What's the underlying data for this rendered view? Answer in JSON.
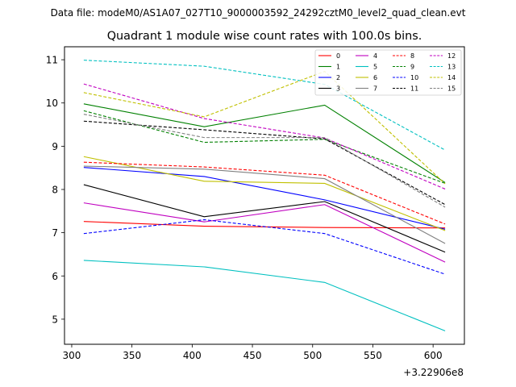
{
  "chart_data": {
    "type": "line",
    "suptitle": "Data file: modeM0/AS1A07_027T10_9000003592_24292cztM0_level2_quad_clean.evt",
    "title": "Quadrant 1 module wise count rates with 100.0s bins.",
    "xlabel": "",
    "ylabel": "",
    "x": [
      310,
      410,
      510,
      610
    ],
    "x_offset_label": "+3.22906e8",
    "xlim": [
      294,
      626
    ],
    "ylim": [
      4.42,
      11.3
    ],
    "xticks": [
      300,
      350,
      400,
      450,
      500,
      550,
      600
    ],
    "yticks": [
      5,
      6,
      7,
      8,
      9,
      10,
      11
    ],
    "legend_position": "top-right",
    "legend_columns": 4,
    "grid": false,
    "series": [
      {
        "name": "0",
        "color": "#ff0000",
        "dash": "solid",
        "values": [
          7.26,
          7.15,
          7.12,
          7.11
        ]
      },
      {
        "name": "1",
        "color": "#008000",
        "dash": "solid",
        "values": [
          9.98,
          9.45,
          9.95,
          8.16
        ]
      },
      {
        "name": "2",
        "color": "#0000ff",
        "dash": "solid",
        "values": [
          8.51,
          8.3,
          7.76,
          7.08
        ]
      },
      {
        "name": "3",
        "color": "#000000",
        "dash": "solid",
        "values": [
          8.11,
          7.37,
          7.72,
          6.55
        ]
      },
      {
        "name": "4",
        "color": "#c000c0",
        "dash": "solid",
        "values": [
          7.69,
          7.25,
          7.65,
          6.32
        ]
      },
      {
        "name": "5",
        "color": "#00c0c0",
        "dash": "solid",
        "values": [
          6.36,
          6.21,
          5.85,
          4.73
        ]
      },
      {
        "name": "6",
        "color": "#c0c000",
        "dash": "solid",
        "values": [
          8.76,
          8.19,
          8.14,
          7.05
        ]
      },
      {
        "name": "7",
        "color": "#808080",
        "dash": "solid",
        "values": [
          8.54,
          8.47,
          8.25,
          6.75
        ]
      },
      {
        "name": "8",
        "color": "#ff0000",
        "dash": "dashed",
        "values": [
          8.63,
          8.52,
          8.33,
          7.2
        ]
      },
      {
        "name": "9",
        "color": "#008000",
        "dash": "dashed",
        "values": [
          9.82,
          9.09,
          9.16,
          8.14
        ]
      },
      {
        "name": "10",
        "color": "#0000ff",
        "dash": "dashed",
        "values": [
          6.98,
          7.3,
          6.98,
          6.04
        ]
      },
      {
        "name": "11",
        "color": "#000000",
        "dash": "dashed",
        "values": [
          9.58,
          9.38,
          9.17,
          7.65
        ]
      },
      {
        "name": "12",
        "color": "#c000c0",
        "dash": "dashed",
        "values": [
          10.44,
          9.64,
          9.19,
          8.01
        ]
      },
      {
        "name": "13",
        "color": "#00c0c0",
        "dash": "dashed",
        "values": [
          10.99,
          10.85,
          10.43,
          8.91
        ]
      },
      {
        "name": "14",
        "color": "#c0c000",
        "dash": "dashed",
        "values": [
          10.24,
          9.68,
          10.73,
          8.13
        ]
      },
      {
        "name": "15",
        "color": "#808080",
        "dash": "dashed",
        "values": [
          9.74,
          9.2,
          9.2,
          7.59
        ]
      }
    ]
  }
}
